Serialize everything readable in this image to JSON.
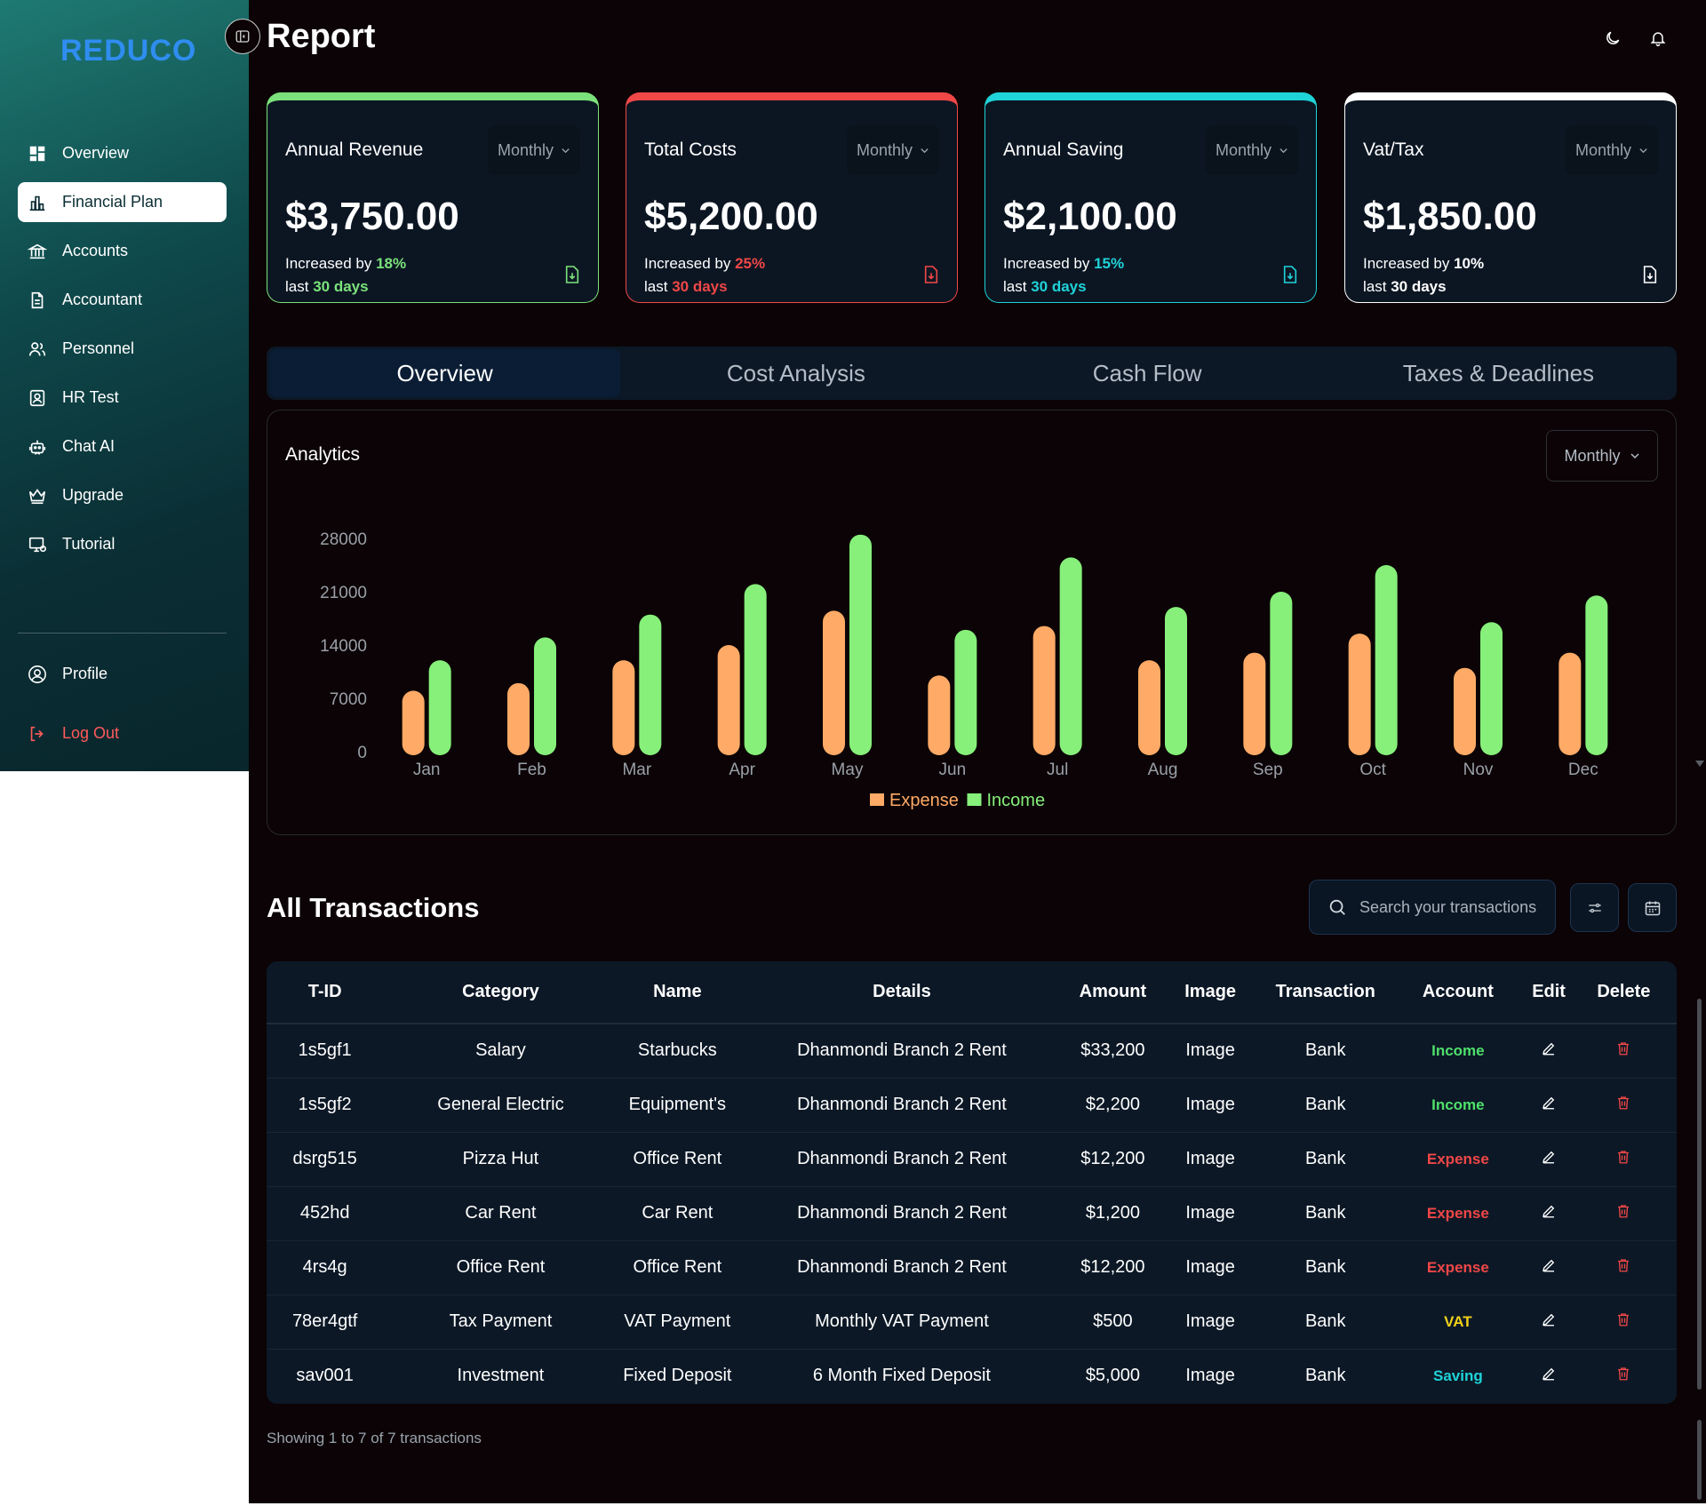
{
  "brand": {
    "logo": "REDUCO"
  },
  "sidebar": {
    "items": [
      {
        "label": "Overview",
        "icon": "dashboard-icon"
      },
      {
        "label": "Financial Plan",
        "icon": "bar-chart-icon"
      },
      {
        "label": "Accounts",
        "icon": "bank-icon"
      },
      {
        "label": "Accountant",
        "icon": "document-icon"
      },
      {
        "label": "Personnel",
        "icon": "users-icon"
      },
      {
        "label": "HR Test",
        "icon": "id-badge-icon"
      },
      {
        "label": "Chat AI",
        "icon": "robot-icon"
      },
      {
        "label": "Upgrade",
        "icon": "crown-icon"
      },
      {
        "label": "Tutorial",
        "icon": "monitor-icon"
      }
    ],
    "profile": "Profile",
    "logout": "Log Out"
  },
  "header": {
    "title": "Report"
  },
  "cards": [
    {
      "title": "Annual Revenue",
      "period": "Monthly",
      "value": "$3,750.00",
      "prefix": "Increased by ",
      "pct": "18%",
      "last": "last ",
      "days": "30 days",
      "accent": "#7be27b"
    },
    {
      "title": "Total Costs",
      "period": "Monthly",
      "value": "$5,200.00",
      "prefix": "Increased by ",
      "pct": "25%",
      "last": "last ",
      "days": "30 days",
      "accent": "#f04747"
    },
    {
      "title": "Annual Saving",
      "period": "Monthly",
      "value": "$2,100.00",
      "prefix": "Increased by ",
      "pct": "15%",
      "last": "last ",
      "days": "30 days",
      "accent": "#1fd3d8"
    },
    {
      "title": "Vat/Tax",
      "period": "Monthly",
      "value": "$1,850.00",
      "prefix": "Increased by ",
      "pct": "10%",
      "last": "last ",
      "days": "30 days",
      "accent": "#ffffff"
    }
  ],
  "tabs": [
    "Overview",
    "Cost Analysis",
    "Cash Flow",
    "Taxes & Deadlines"
  ],
  "analytics": {
    "title": "Analytics",
    "period": "Monthly"
  },
  "chart_data": {
    "type": "bar",
    "title": "",
    "xlabel": "",
    "ylabel": "",
    "categories": [
      "Jan",
      "Feb",
      "Mar",
      "Apr",
      "May",
      "Jun",
      "Jul",
      "Aug",
      "Sep",
      "Oct",
      "Nov",
      "Dec"
    ],
    "series": [
      {
        "name": "Expense",
        "color": "#ffaa66",
        "values": [
          8000,
          9000,
          12000,
          14000,
          18500,
          10000,
          16500,
          12000,
          13000,
          15500,
          11000,
          13000
        ]
      },
      {
        "name": "Income",
        "color": "#86f07a",
        "values": [
          12000,
          15000,
          18000,
          22000,
          28500,
          16000,
          25500,
          19000,
          21000,
          24500,
          17000,
          20500
        ]
      }
    ],
    "yticks": [
      0,
      7000,
      14000,
      21000,
      28000
    ],
    "ylim": [
      0,
      28000
    ],
    "grid": false,
    "legend": "bottom-center"
  },
  "transactions": {
    "title": "All Transactions",
    "search_placeholder": "Search your transactions",
    "columns": [
      "T-ID",
      "Category",
      "Name",
      "Details",
      "Amount",
      "Image",
      "Transaction",
      "Account",
      "Edit",
      "Delete"
    ],
    "rows": [
      {
        "tid": "1s5gf1",
        "category": "Salary",
        "name": "Starbucks",
        "details": "Dhanmondi Branch 2 Rent",
        "amount": "$33,200",
        "image": "Image",
        "transaction": "Bank",
        "account": "Income",
        "color": "#4ee06a"
      },
      {
        "tid": "1s5gf2",
        "category": "General Electric",
        "name": "Equipment's",
        "details": "Dhanmondi Branch 2 Rent",
        "amount": "$2,200",
        "image": "Image",
        "transaction": "Bank",
        "account": "Income",
        "color": "#4ee06a"
      },
      {
        "tid": "dsrg515",
        "category": "Pizza Hut",
        "name": "Office Rent",
        "details": "Dhanmondi Branch 2 Rent",
        "amount": "$12,200",
        "image": "Image",
        "transaction": "Bank",
        "account": "Expense",
        "color": "#f04747"
      },
      {
        "tid": "452hd",
        "category": "Car Rent",
        "name": "Car Rent",
        "details": "Dhanmondi Branch 2 Rent",
        "amount": "$1,200",
        "image": "Image",
        "transaction": "Bank",
        "account": "Expense",
        "color": "#f04747"
      },
      {
        "tid": "4rs4g",
        "category": "Office Rent",
        "name": "Office Rent",
        "details": "Dhanmondi Branch 2 Rent",
        "amount": "$12,200",
        "image": "Image",
        "transaction": "Bank",
        "account": "Expense",
        "color": "#f04747"
      },
      {
        "tid": "78er4gtf",
        "category": "Tax Payment",
        "name": "VAT Payment",
        "details": "Monthly VAT Payment",
        "amount": "$500",
        "image": "Image",
        "transaction": "Bank",
        "account": "VAT",
        "color": "#f2d21b"
      },
      {
        "tid": "sav001",
        "category": "Investment",
        "name": "Fixed Deposit",
        "details": "6 Month Fixed Deposit",
        "amount": "$5,000",
        "image": "Image",
        "transaction": "Bank",
        "account": "Saving",
        "color": "#1fd3d8"
      }
    ],
    "footer": "Showing 1 to 7 of 7 transactions"
  }
}
